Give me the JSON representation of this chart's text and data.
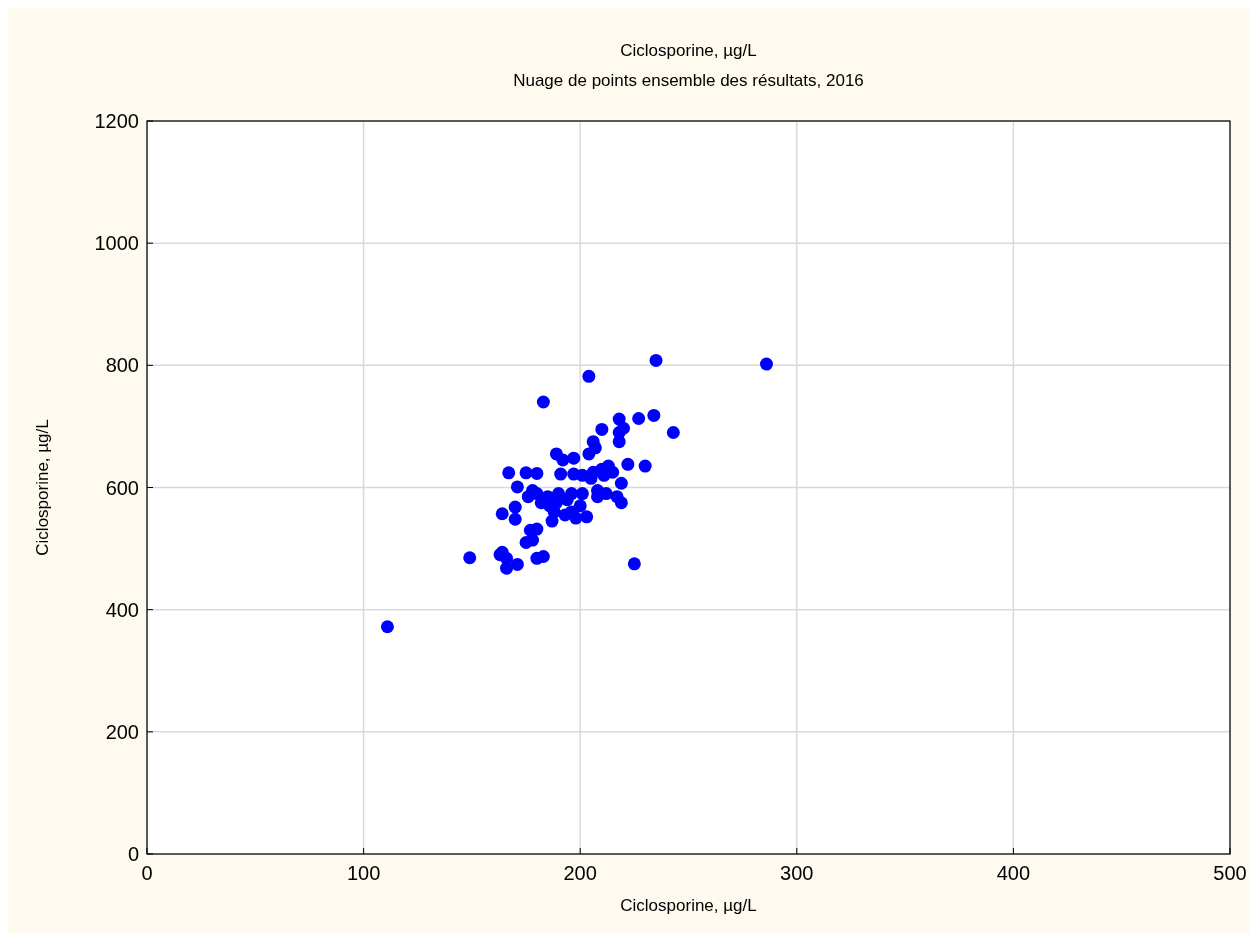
{
  "chart_data": {
    "type": "scatter",
    "title": "Ciclosporine, µg/L",
    "subtitle": "Nuage de points ensemble des résultats, 2016",
    "xlabel": "Ciclosporine, µg/L",
    "ylabel": "Ciclosporine, µg/L",
    "xlim": [
      0,
      500
    ],
    "xticks": [
      0,
      100,
      200,
      300,
      400,
      500
    ],
    "ylim": [
      0,
      1200
    ],
    "yticks": [
      0,
      200,
      400,
      600,
      800,
      1000,
      1200
    ],
    "grid": true,
    "marker": "circle",
    "series": [
      {
        "color": "#0000ff",
        "x": [
          111,
          149,
          163,
          164,
          166,
          166,
          171,
          164,
          167,
          175,
          180,
          170,
          170,
          171,
          175,
          178,
          177,
          180,
          180,
          183,
          176,
          178,
          180,
          182,
          186,
          183,
          187,
          188,
          189,
          190,
          189,
          191,
          192,
          193,
          194,
          196,
          197,
          197,
          198,
          200,
          201,
          201,
          203,
          204,
          204,
          205,
          206,
          207,
          208,
          208,
          210,
          210,
          211,
          212,
          213,
          218,
          218,
          218,
          217,
          219,
          219,
          220,
          222,
          225,
          227,
          230,
          234,
          235,
          243,
          286,
          196,
          185,
          206,
          215
        ],
        "values": [
          372,
          485,
          490,
          494,
          484,
          468,
          474,
          557,
          624,
          624,
          623,
          568,
          548,
          601,
          510,
          514,
          530,
          532,
          484,
          487,
          585,
          595,
          590,
          575,
          570,
          740,
          545,
          560,
          575,
          590,
          655,
          622,
          645,
          555,
          580,
          590,
          622,
          648,
          550,
          570,
          590,
          620,
          552,
          655,
          782,
          615,
          675,
          665,
          585,
          595,
          695,
          630,
          620,
          590,
          635,
          712,
          690,
          675,
          585,
          575,
          607,
          697,
          638,
          475,
          713,
          635,
          718,
          808,
          690,
          802,
          560,
          585,
          625,
          625
        ]
      }
    ]
  }
}
